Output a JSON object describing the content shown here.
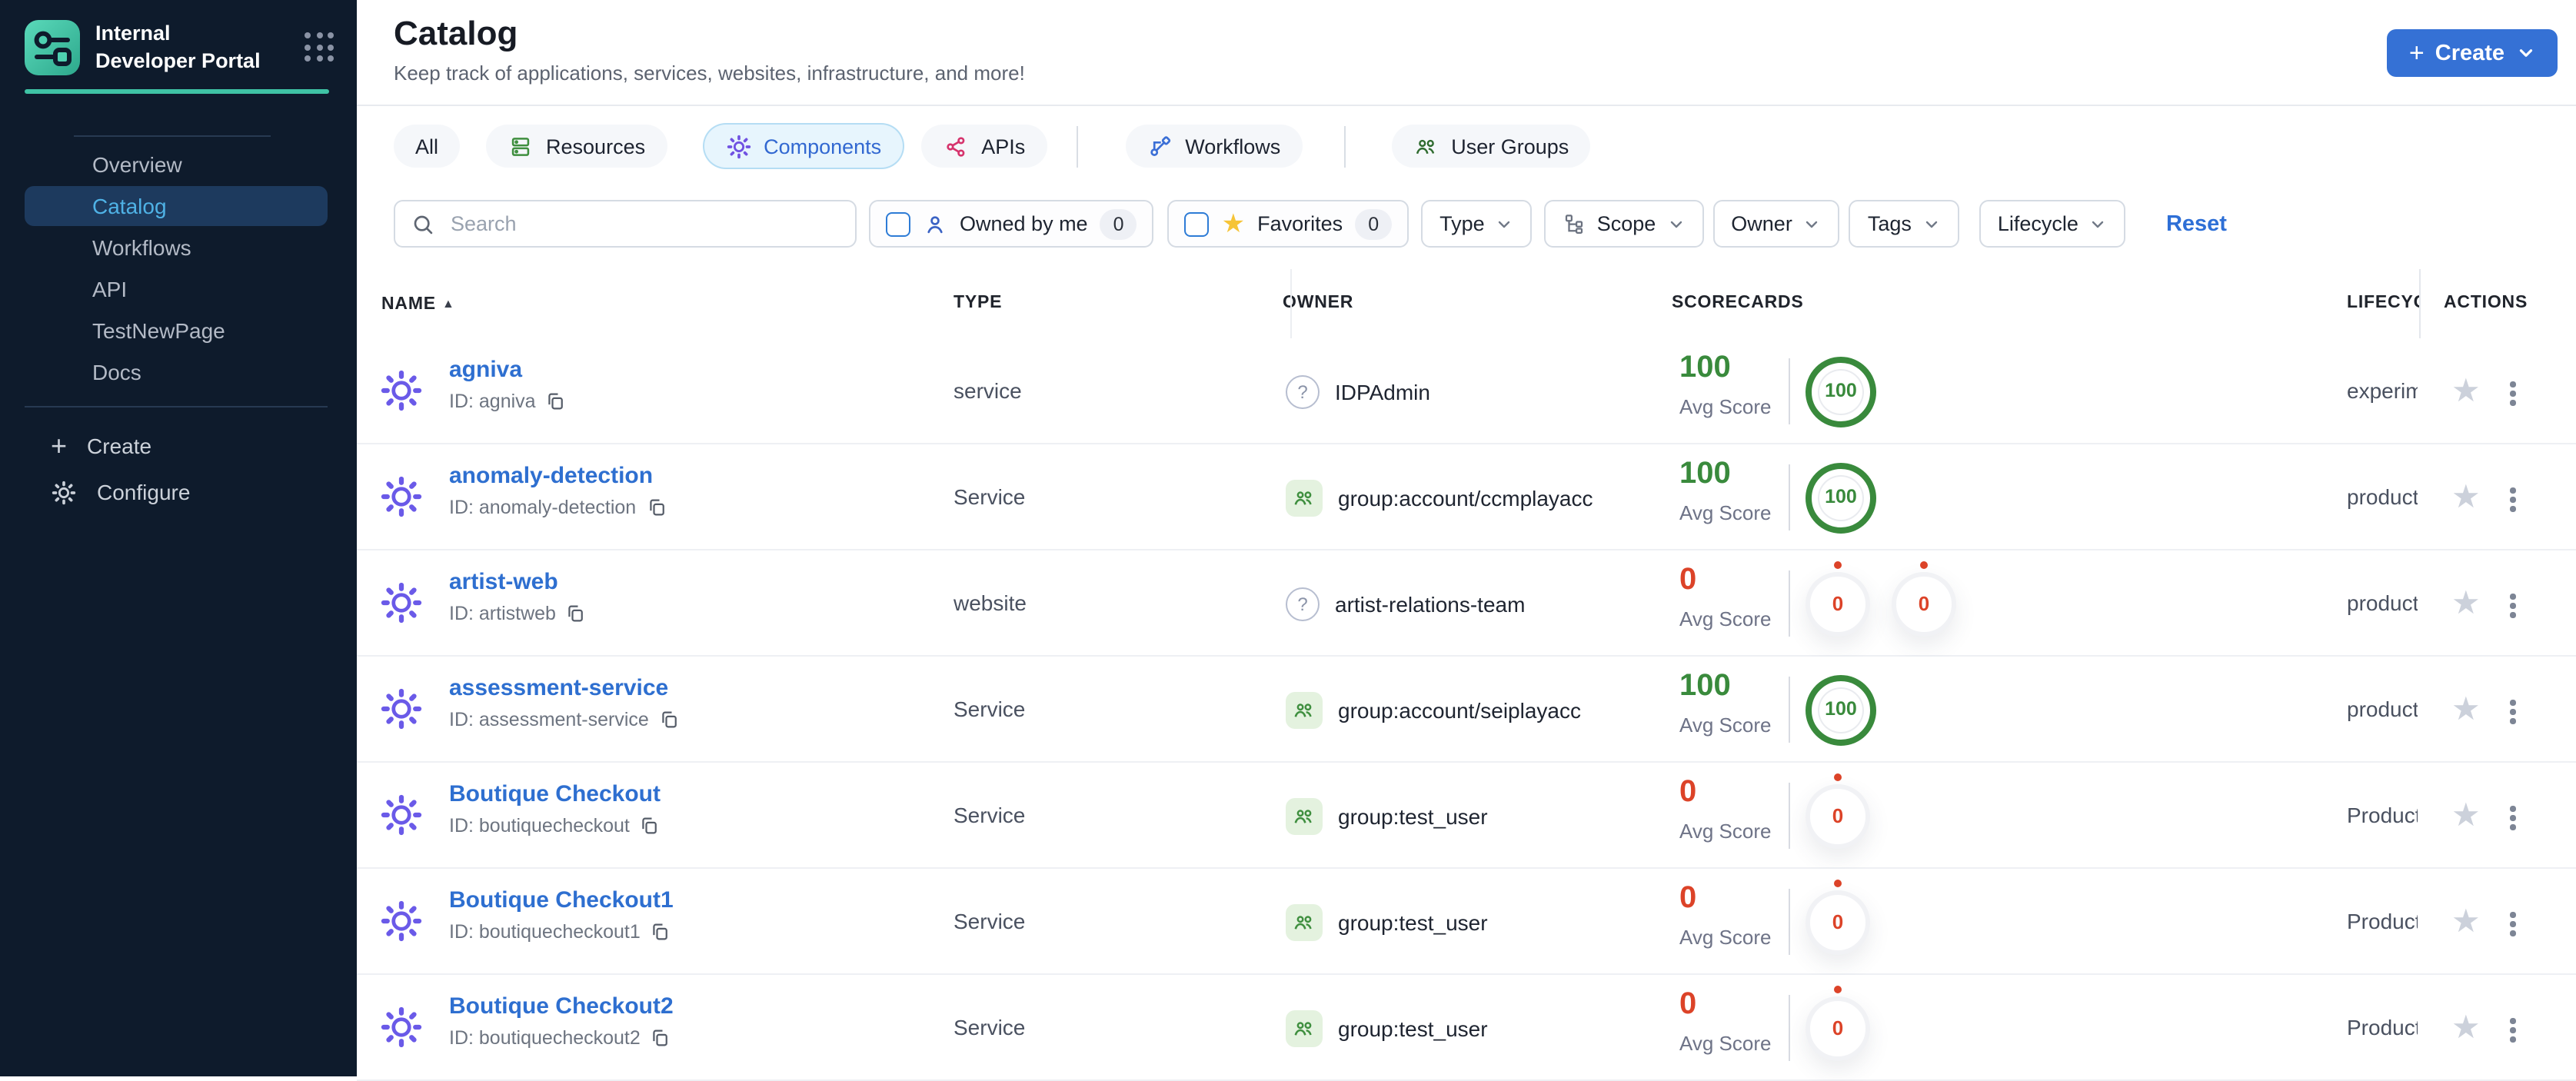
{
  "app": {
    "title": "Internal Developer Portal"
  },
  "sidebar": {
    "items": [
      {
        "label": "Overview",
        "active": false
      },
      {
        "label": "Catalog",
        "active": true
      },
      {
        "label": "Workflows",
        "active": false
      },
      {
        "label": "API",
        "active": false
      },
      {
        "label": "TestNewPage",
        "active": false
      },
      {
        "label": "Docs",
        "active": false
      }
    ],
    "footer": [
      {
        "label": "Create",
        "icon": "plus-icon"
      },
      {
        "label": "Configure",
        "icon": "gear-icon"
      }
    ]
  },
  "header": {
    "title": "Catalog",
    "subtitle": "Keep track of applications, services, websites, infrastructure, and more!",
    "create_label": "Create"
  },
  "tabs": [
    {
      "label": "All",
      "icon": null,
      "active": false
    },
    {
      "label": "Resources",
      "icon": "server-icon",
      "active": false
    },
    {
      "label": "Components",
      "icon": "gear-icon",
      "active": true
    },
    {
      "label": "APIs",
      "icon": "api-icon",
      "active": false
    },
    {
      "label": "Workflows",
      "icon": "workflow-icon",
      "active": false
    },
    {
      "label": "User Groups",
      "icon": "people-icon",
      "active": false
    }
  ],
  "filters": {
    "search_placeholder": "Search",
    "owned_by_me": {
      "label": "Owned by me",
      "count": "0"
    },
    "favorites": {
      "label": "Favorites",
      "count": "0"
    },
    "dropdowns": [
      "Type",
      "Scope",
      "Owner",
      "Tags",
      "Lifecycle"
    ],
    "reset_label": "Reset"
  },
  "table": {
    "columns": [
      "NAME",
      "TYPE",
      "OWNER",
      "SCORECARDS",
      "LIFECYCLE",
      "ACTIONS"
    ],
    "sort_icon": "▲",
    "avg_score_label": "Avg Score",
    "rows": [
      {
        "name": "agniva",
        "id": "ID: agniva",
        "type": "service",
        "owner": "IDPAdmin",
        "owner_icon": "question",
        "avg_score": "100",
        "score_color": "green",
        "rings": [
          {
            "value": "100",
            "state": "green"
          }
        ],
        "lifecycle": "experimental"
      },
      {
        "name": "anomaly-detection",
        "id": "ID: anomaly-detection",
        "type": "Service",
        "owner": "group:account/ccmplayacc",
        "owner_icon": "group",
        "avg_score": "100",
        "score_color": "green",
        "rings": [
          {
            "value": "100",
            "state": "green"
          }
        ],
        "lifecycle": "production"
      },
      {
        "name": "artist-web",
        "id": "ID: artistweb",
        "type": "website",
        "owner": "artist-relations-team",
        "owner_icon": "question",
        "avg_score": "0",
        "score_color": "red",
        "rings": [
          {
            "value": "0",
            "state": "zero"
          },
          {
            "value": "0",
            "state": "zero"
          }
        ],
        "lifecycle": "production"
      },
      {
        "name": "assessment-service",
        "id": "ID: assessment-service",
        "type": "Service",
        "owner": "group:account/seiplayacc",
        "owner_icon": "group",
        "avg_score": "100",
        "score_color": "green",
        "rings": [
          {
            "value": "100",
            "state": "green"
          }
        ],
        "lifecycle": "production"
      },
      {
        "name": "Boutique Checkout",
        "id": "ID: boutiquecheckout",
        "type": "Service",
        "owner": "group:test_user",
        "owner_icon": "group",
        "avg_score": "0",
        "score_color": "red",
        "rings": [
          {
            "value": "0",
            "state": "zero"
          }
        ],
        "lifecycle": "Production"
      },
      {
        "name": "Boutique Checkout1",
        "id": "ID: boutiquecheckout1",
        "type": "Service",
        "owner": "group:test_user",
        "owner_icon": "group",
        "avg_score": "0",
        "score_color": "red",
        "rings": [
          {
            "value": "0",
            "state": "zero"
          }
        ],
        "lifecycle": "Production"
      },
      {
        "name": "Boutique Checkout2",
        "id": "ID: boutiquecheckout2",
        "type": "Service",
        "owner": "group:test_user",
        "owner_icon": "group",
        "avg_score": "0",
        "score_color": "red",
        "rings": [
          {
            "value": "0",
            "state": "zero"
          }
        ],
        "lifecycle": "Production"
      }
    ]
  },
  "colors": {
    "sidebar_bg": "#0e1b2c",
    "sidebar_active_bg": "#1d3a5e",
    "sidebar_active_text": "#4fb2e6",
    "accent_teal": "#3fc3a5",
    "primary_blue": "#3571d5",
    "link_blue": "#2e6fd0",
    "score_green": "#398a3c",
    "score_red": "#dc4328",
    "tab_selected_bg": "#e7f5fd",
    "gear_purple": "#6a5ae8",
    "group_icon_green": "#3f8f3f",
    "favorite_star_yellow": "#f6c437"
  }
}
